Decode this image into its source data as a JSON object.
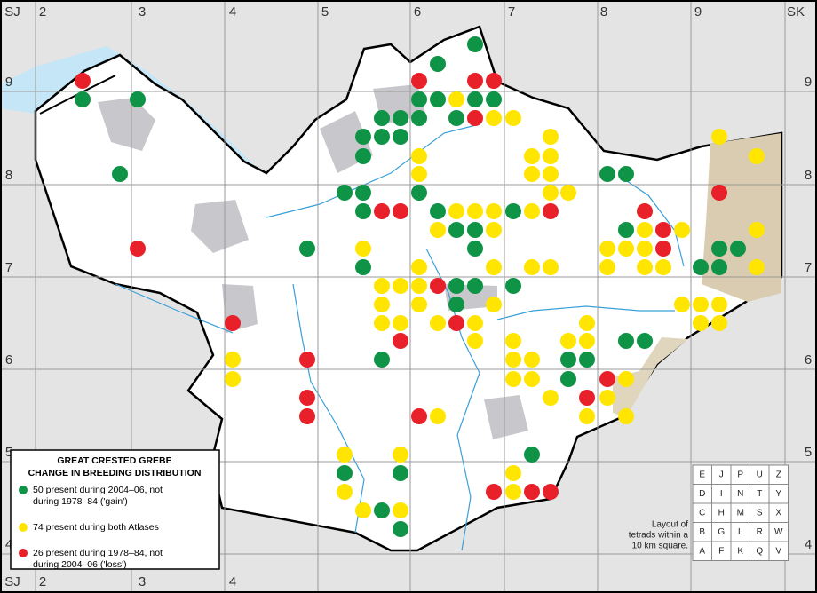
{
  "grid": {
    "columns": [
      "SJ",
      "2",
      "3",
      "4",
      "5",
      "6",
      "7",
      "8",
      "9",
      "SK"
    ],
    "rows": [
      "9",
      "8",
      "7",
      "6",
      "5",
      "4"
    ]
  },
  "legend": {
    "title": [
      "GREAT CRESTED GREBE",
      "CHANGE IN BREEDING DISTRIBUTION"
    ],
    "items": [
      {
        "count": 50,
        "lines": [
          "present during 2004–06, not",
          "during 1978–84 ('gain')"
        ],
        "color": "#0f9447"
      },
      {
        "count": 74,
        "lines": [
          "present during both Atlases"
        ],
        "color": "#ffe500"
      },
      {
        "count": 26,
        "lines": [
          "present during 1978–84, not",
          "during 2004–06 ('loss')"
        ],
        "color": "#e8202a"
      }
    ]
  },
  "tetrad_key": {
    "letters": [
      [
        "E",
        "J",
        "P",
        "U",
        "Z"
      ],
      [
        "D",
        "I",
        "N",
        "T",
        "Y"
      ],
      [
        "C",
        "H",
        "M",
        "S",
        "X"
      ],
      [
        "B",
        "G",
        "L",
        "R",
        "W"
      ],
      [
        "A",
        "F",
        "K",
        "Q",
        "V"
      ]
    ],
    "caption": [
      "Layout of",
      "tetrads within a",
      "10 km square."
    ]
  }
}
